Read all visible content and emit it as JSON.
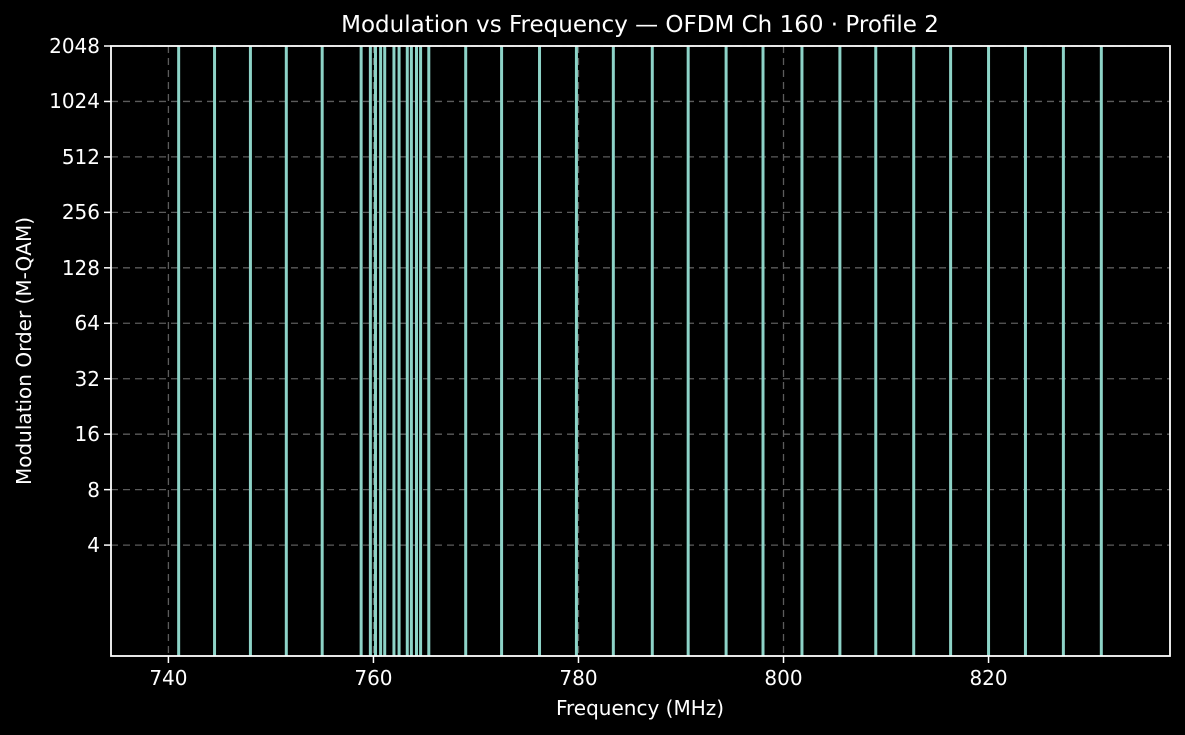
{
  "chart_data": {
    "type": "bar",
    "variant": "full-height-vlines",
    "title": "Modulation vs Frequency — OFDM Ch 160 · Profile 2",
    "xlabel": "Frequency (MHz)",
    "ylabel": "Modulation Order (M-QAM)",
    "x_ticks": [
      740,
      760,
      780,
      800,
      820
    ],
    "y_ticks": [
      2048,
      1024,
      512,
      256,
      128,
      64,
      32,
      16,
      8,
      4
    ],
    "y_scale": "log2",
    "xlim": [
      734.4,
      837.7
    ],
    "ylim": [
      1,
      2048
    ],
    "grid": true,
    "grid_style": "dashed",
    "legend": "none",
    "frequencies_mhz": [
      741.0,
      744.5,
      748.0,
      751.5,
      755.0,
      758.8,
      759.7,
      760.2,
      760.7,
      761.1,
      762.0,
      762.5,
      763.3,
      763.7,
      764.2,
      764.6,
      765.4,
      769.0,
      772.5,
      776.2,
      779.8,
      783.4,
      787.2,
      790.7,
      794.4,
      798.0,
      801.8,
      805.5,
      809.0,
      812.7,
      816.3,
      820.0,
      823.6,
      827.3,
      831.0
    ],
    "modulation_order_per_line": 2048,
    "colors": {
      "line": "#8dd3c7",
      "background": "#000000",
      "text": "#ffffff",
      "grid": "#5c5c5c",
      "spine": "#ffffff"
    }
  }
}
